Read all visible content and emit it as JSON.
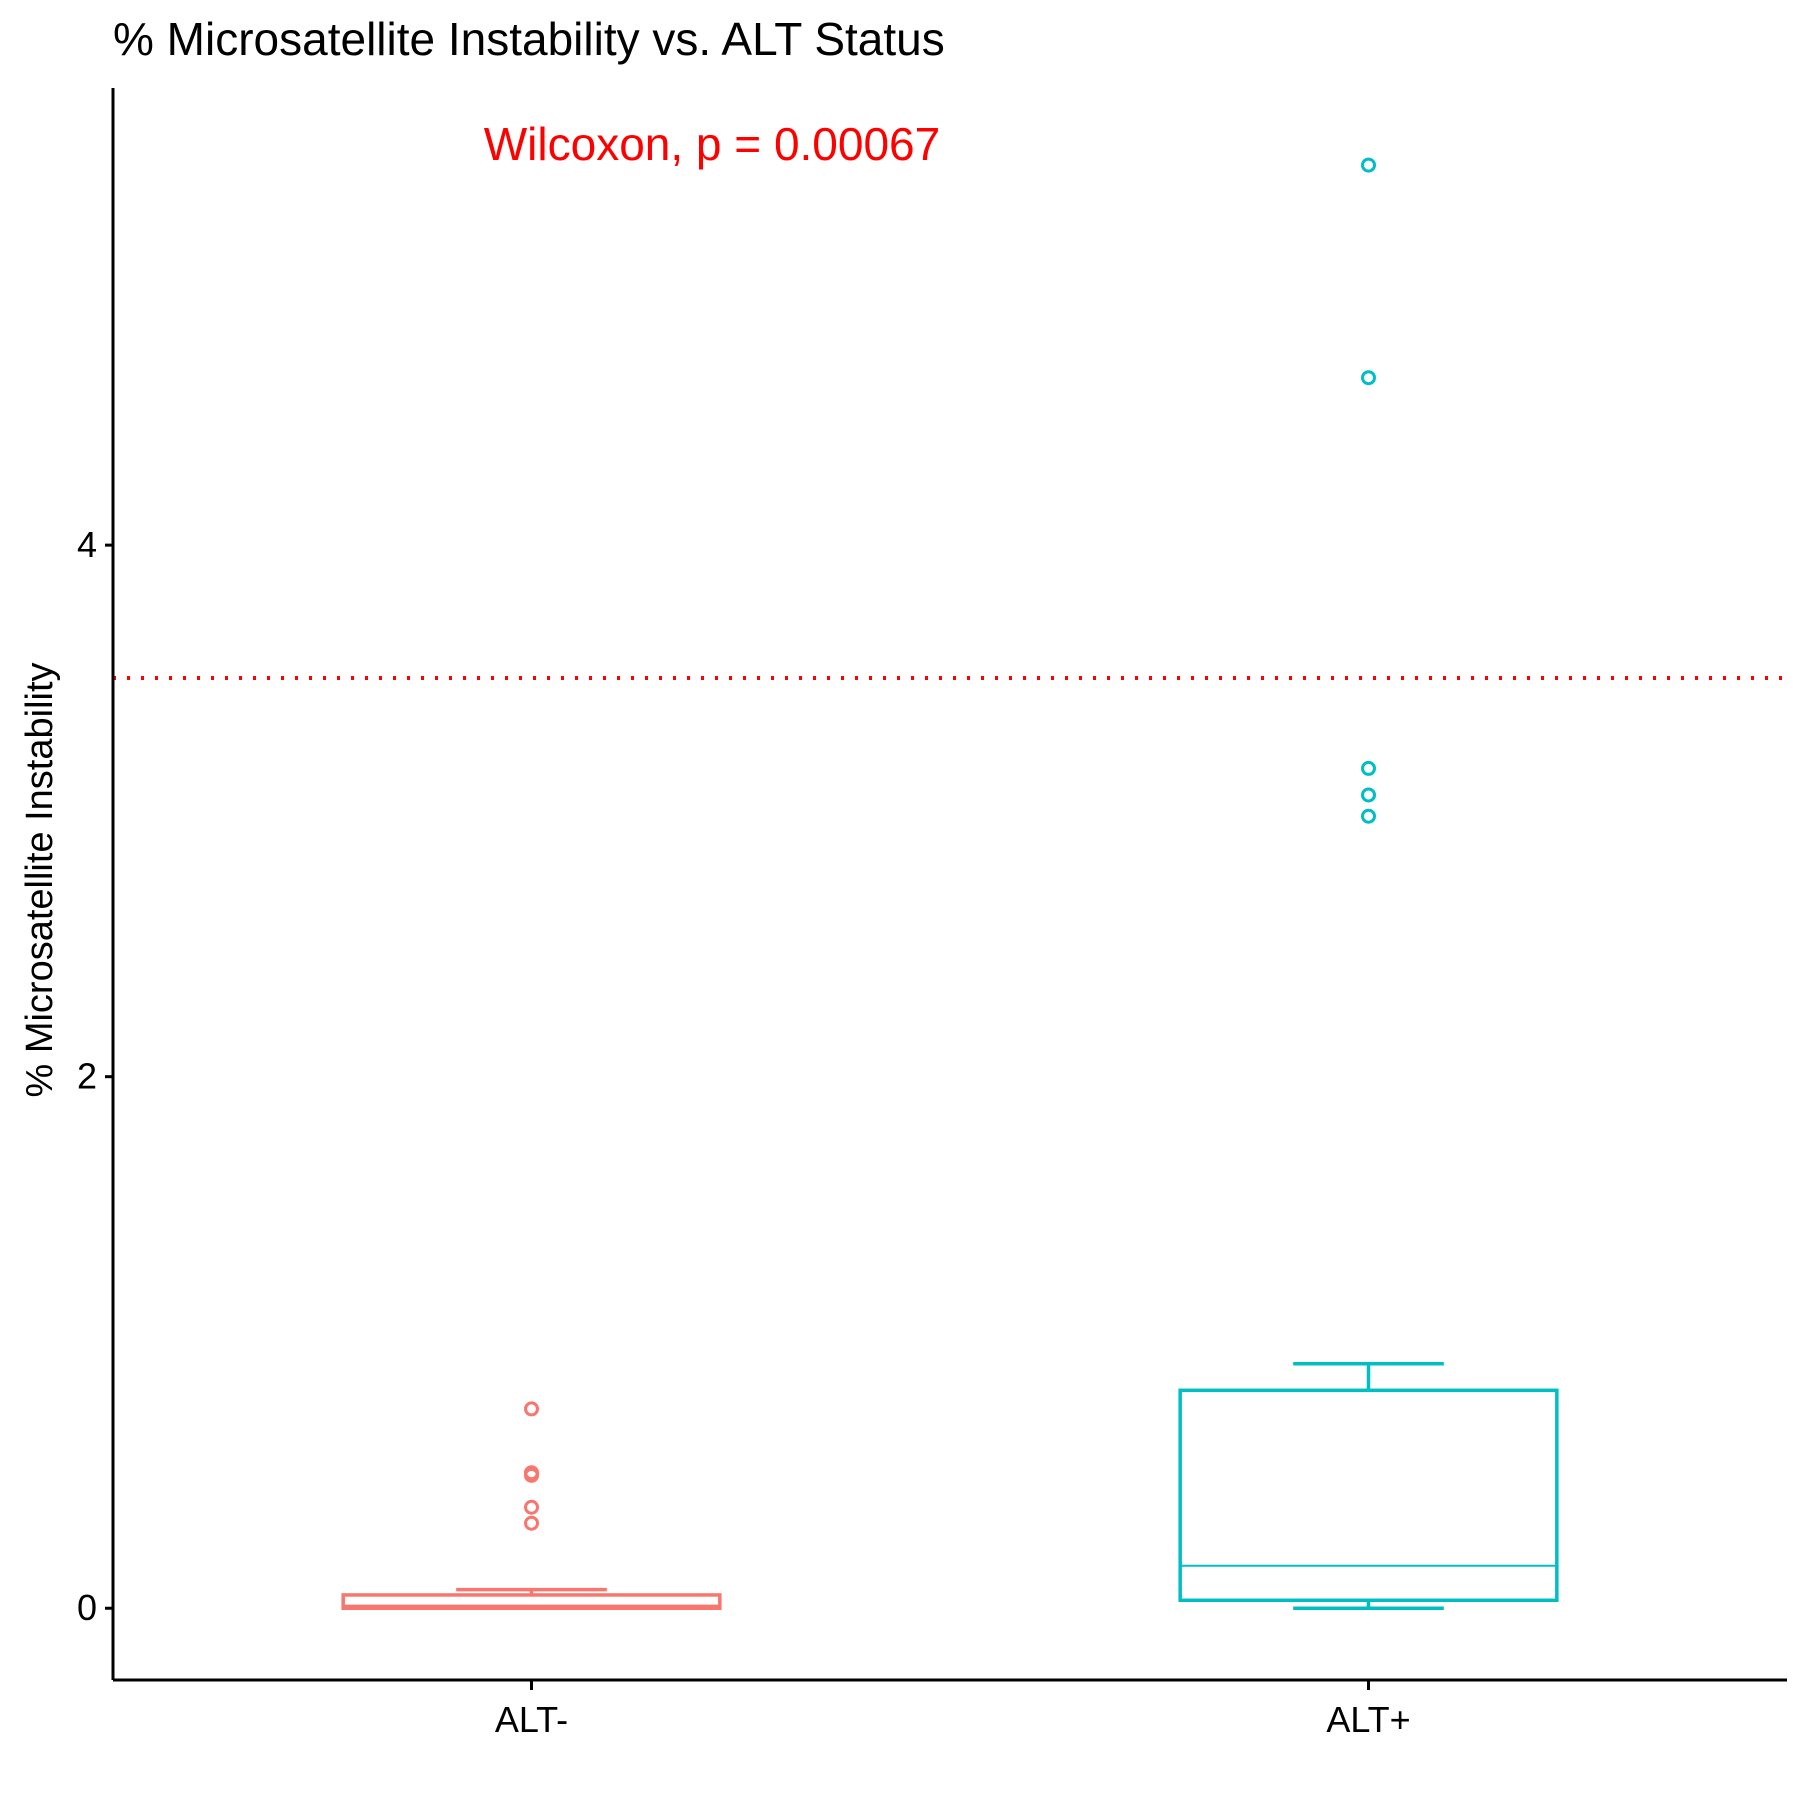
{
  "chart_data": {
    "type": "box",
    "title": "% Microsatellite Instability vs. ALT Status",
    "xlabel": "",
    "ylabel": "% Microsatellite Instability",
    "ylim": [
      -0.27,
      5.72
    ],
    "y_ticks": [
      0,
      2,
      4
    ],
    "y_tick_labels": [
      "0",
      "2",
      "4"
    ],
    "grid": false,
    "legend": "none",
    "categories": [
      "ALT-",
      "ALT+"
    ],
    "series": [
      {
        "name": "ALT-",
        "color": "#F8766D",
        "whisker_low": 0.0,
        "q1": 0.0,
        "median": 0.01,
        "q3": 0.05,
        "whisker_high": 0.07,
        "outliers": [
          0.32,
          0.38,
          0.5,
          0.51,
          0.75
        ]
      },
      {
        "name": "ALT+",
        "color": "#00BFC4",
        "whisker_low": 0.0,
        "q1": 0.03,
        "median": 0.16,
        "q3": 0.82,
        "whisker_high": 0.92,
        "outliers": [
          2.98,
          3.06,
          3.16,
          4.63,
          5.43
        ]
      }
    ],
    "reference_line": {
      "y": 3.5,
      "style": "dotted",
      "color": "#FF0000"
    },
    "annotation": {
      "text": "Wilcoxon, p = 0.00067",
      "color": "#FF0000"
    }
  }
}
